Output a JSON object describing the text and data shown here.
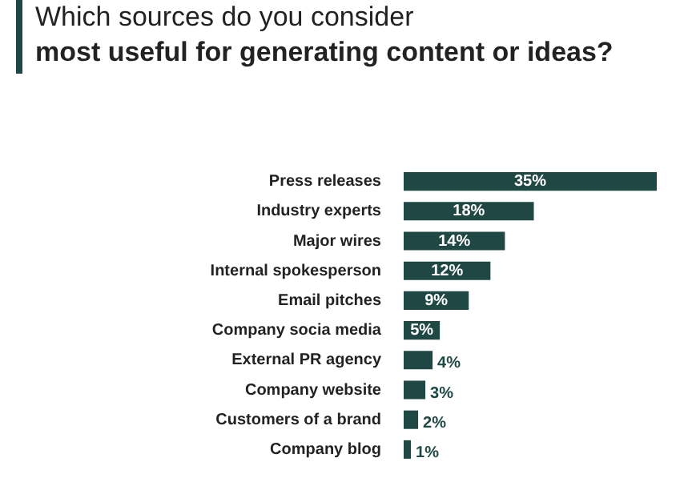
{
  "chart_data": {
    "type": "bar",
    "orientation": "horizontal",
    "title": "Which sources do you consider",
    "subtitle": "most useful for generating content or ideas?",
    "categories": [
      "Press releases",
      "Industry experts",
      "Major wires",
      "Internal spokesperson",
      "Email pitches",
      "Company socia media",
      "External PR agency",
      "Company website",
      "Customers of a brand",
      "Company blog"
    ],
    "values": [
      35,
      18,
      14,
      12,
      9,
      5,
      4,
      3,
      2,
      1
    ],
    "value_labels": [
      "35%",
      "18%",
      "14%",
      "12%",
      "9%",
      "5%",
      "4%",
      "3%",
      "2%",
      "1%"
    ],
    "color": "#1f4744",
    "grid": false,
    "legend": false
  }
}
